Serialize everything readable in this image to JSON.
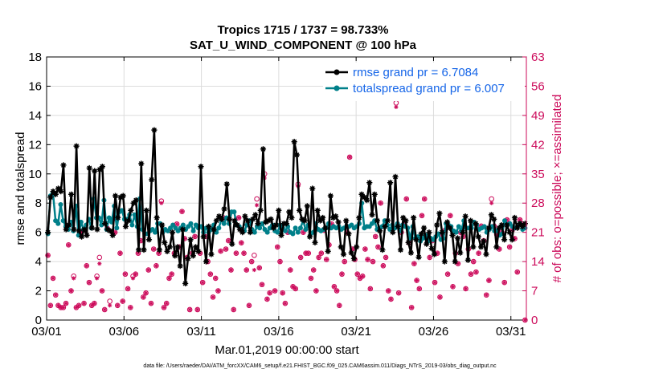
{
  "chart_data": {
    "type": "line",
    "title": "Tropics 1715 / 1737 = 98.733%",
    "subtitle": "SAT_U_WIND_COMPONENT @ 100 hPa",
    "xlabel": "Mar.01,2019 00:00:00 start",
    "ylabel": "rmse and totalspread",
    "y2label": "# of obs: o=possible; ×=assimilated",
    "footnote": "data file: /Users/raeder/DAI/ATM_forcXX/CAM6_setup/f.e21.FHIST_BGC.f09_025.CAM6assim.011/Diags_NTrS_2019-03/obs_diag_output.nc",
    "x_tick_labels": [
      "03/01",
      "03/06",
      "03/11",
      "03/16",
      "03/21",
      "03/26",
      "03/31"
    ],
    "x_tick_days": [
      1,
      6,
      11,
      16,
      21,
      26,
      31
    ],
    "xlim": [
      1,
      32
    ],
    "ylim": [
      0,
      18
    ],
    "y_ticks": [
      0,
      2,
      4,
      6,
      8,
      10,
      12,
      14,
      16,
      18
    ],
    "y_tick_labels": [
      "0",
      "2",
      "4",
      "6",
      "8",
      "10",
      "12",
      "14",
      "16",
      "18"
    ],
    "y2lim": [
      0,
      63
    ],
    "y2_ticks": [
      0,
      7,
      14,
      21,
      28,
      35,
      42,
      49,
      56,
      63
    ],
    "y2_tick_labels": [
      "0",
      "7",
      "14",
      "21",
      "28",
      "35",
      "42",
      "49",
      "56",
      "63"
    ],
    "grid": true,
    "legend_position": "top-right",
    "colors": {
      "rmse": "#000000",
      "spread": "#00808a",
      "obs": "#cc0a5a",
      "legend_text": "#1565e8",
      "grid": "#dcdcdc",
      "axis": "#000000"
    },
    "series": [
      {
        "name": "rmse grand pr = 6.7084",
        "key": "rmse",
        "values": [
          6.0,
          8.4,
          8.8,
          8.6,
          9.0,
          8.8,
          10.6,
          6.2,
          6.5,
          8.6,
          6.2,
          11.9,
          6.1,
          5.7,
          6.2,
          5.8,
          10.4,
          6.3,
          10.2,
          6.2,
          10.3,
          10.5,
          6.6,
          6.2,
          6.1,
          5.8,
          8.5,
          7.0,
          8.4,
          8.5,
          6.4,
          6.8,
          7.5,
          8.0,
          8.2,
          4.8,
          10.7,
          4.8,
          7.5,
          5.5,
          9.6,
          13.0,
          7.0,
          4.8,
          6.5,
          5.3,
          4.7,
          5.0,
          6.0,
          4.4,
          5.0,
          3.7,
          6.2,
          2.5,
          4.2,
          5.5,
          4.4,
          5.0,
          4.7,
          10.5,
          5.7,
          4.0,
          6.4,
          4.5,
          6.2,
          6.8,
          7.1,
          6.9,
          7.6,
          9.3,
          6.9,
          5.2,
          6.8,
          6.5,
          6.2,
          6.0,
          7.1,
          6.8,
          6.0,
          6.9,
          7.2,
          6.6,
          7.5,
          11.7,
          6.7,
          6.8,
          6.9,
          6.3,
          6.5,
          7.5,
          5.8,
          6.6,
          6.6,
          7.4,
          7.0,
          12.2,
          11.3,
          7.5,
          6.9,
          6.8,
          7.8,
          5.7,
          9.0,
          5.3,
          7.5,
          6.8,
          7.0,
          6.3,
          4.7,
          8.5,
          7.0,
          7.1,
          6.7,
          5.0,
          4.5,
          6.8,
          5.9,
          4.6,
          4.2,
          5.0,
          7.0,
          8.6,
          8.4,
          8.2,
          9.4,
          7.2,
          8.6,
          6.8,
          6.1,
          4.8,
          6.4,
          6.8,
          9.4,
          6.0,
          9.8,
          6.4,
          4.8,
          7.0,
          6.8,
          5.3,
          4.6,
          7.0,
          5.5,
          4.3,
          5.9,
          6.3,
          5.2,
          6.0,
          4.9,
          4.5,
          6.5,
          7.3,
          6.0,
          4.0,
          6.7,
          6.3,
          5.8,
          4.0,
          5.6,
          4.6,
          6.0,
          7.1,
          4.1,
          6.8,
          5.0,
          6.6,
          5.7,
          5.0,
          5.4,
          4.5,
          6.3,
          7.2,
          6.9,
          5.0,
          6.3,
          6.5,
          5.5,
          6.5,
          6.0,
          5.5,
          7.0,
          6.3,
          6.6,
          6.4,
          6.6
        ]
      },
      {
        "name": "totalspread grand pr = 6.007",
        "key": "spread",
        "values": [
          5.9,
          8.5,
          8.7,
          6.8,
          6.6,
          7.9,
          6.8,
          6.4,
          6.2,
          6.7,
          6.1,
          7.8,
          5.8,
          6.7,
          6.2,
          6.5,
          6.9,
          6.3,
          8.3,
          7.0,
          7.0,
          6.5,
          8.2,
          6.2,
          7.0,
          6.7,
          7.8,
          6.3,
          7.4,
          7.5,
          6.9,
          6.9,
          7.2,
          6.5,
          7.2,
          6.4,
          8.3,
          6.2,
          5.9,
          5.9,
          6.1,
          6.2,
          6.0,
          6.6,
          6.6,
          6.0,
          6.2,
          6.1,
          6.3,
          6.5,
          6.3,
          6.1,
          6.3,
          6.5,
          6.2,
          6.4,
          6.6,
          6.1,
          6.5,
          6.3,
          6.4,
          6.0,
          6.3,
          6.0,
          6.2,
          6.5,
          6.0,
          6.3,
          6.9,
          6.6,
          7.0,
          6.6,
          7.4,
          7.4,
          6.5,
          6.4,
          6.2,
          6.1,
          6.5,
          6.8,
          6.2,
          6.0,
          6.4,
          6.3,
          6.6,
          6.2,
          6.0,
          6.3,
          6.5,
          6.1,
          6.0,
          6.5,
          6.3,
          6.1,
          6.4,
          6.0,
          5.9,
          6.3,
          6.0,
          6.3,
          6.8,
          6.2,
          6.5,
          5.9,
          6.0,
          6.6,
          6.2,
          6.1,
          6.2,
          6.3,
          6.6,
          6.3,
          6.4,
          6.3,
          6.4,
          6.2,
          6.3,
          6.4,
          6.4,
          6.5,
          6.3,
          6.4,
          6.6,
          8.0,
          6.3,
          6.4,
          6.4,
          6.6,
          6.8,
          6.2,
          6.3,
          6.4,
          6.8,
          6.5,
          6.2,
          6.5,
          6.3,
          6.6,
          6.1,
          6.5,
          6.4,
          6.3,
          5.6,
          6.4,
          5.6,
          5.7,
          5.4,
          5.6,
          5.8,
          5.4,
          5.6,
          5.5,
          5.7,
          5.9,
          5.5,
          5.6,
          6.6,
          6.5,
          6.4,
          6.1,
          6.0,
          6.4,
          6.1,
          6.8,
          6.3,
          6.3,
          6.3,
          6.7,
          6.5,
          6.2,
          6.3,
          6.4,
          6.0,
          6.2,
          6.4,
          6.1,
          6.1,
          5.8,
          5.9,
          6.8,
          6.5,
          6.6,
          6.4,
          6.3,
          6.4,
          6.6,
          6.2,
          6.3
        ]
      }
    ],
    "obs_possible": [
      15.5,
      3.5,
      10.0,
      6.0,
      3.5,
      3.0,
      3.0,
      4.0,
      18.0,
      7.0,
      10.5,
      3.0,
      3.5,
      21.0,
      4.0,
      13.0,
      9.0,
      3.5,
      4.0,
      10.5,
      15.0,
      7.0,
      2.5,
      22.0,
      4.5,
      24.0,
      21.0,
      3.5,
      16.0,
      4.5,
      11.0,
      7.5,
      3.0,
      10.5,
      11.0,
      16.0,
      19.0,
      5.5,
      6.5,
      12.0,
      4.0,
      17.0,
      13.0,
      16.0,
      28.5,
      3.0,
      4.0,
      10.0,
      11.0,
      16.0,
      23.0,
      17.5,
      26.0,
      19.5,
      15.0,
      2.5,
      16.0,
      20.0,
      2.5,
      16.0,
      9.0,
      20.0,
      14.0,
      11.0,
      5.5,
      10.0,
      7.0,
      16.5,
      24.5,
      17.0,
      19.0,
      12.0,
      2.5,
      16.0,
      24.5,
      18.5,
      16.0,
      12.0,
      3.5,
      14.0,
      15.5,
      29.0,
      12.5,
      8.5,
      35.0,
      5.0,
      6.5,
      22.5,
      7.0,
      17.5,
      14.0,
      6.5,
      4.0,
      21.0,
      12.0,
      8.0,
      7.5,
      32.5,
      15.0,
      21.0,
      16.0,
      16.0,
      10.0,
      12.0,
      7.0,
      15.0,
      16.0,
      21.5,
      14.5,
      18.0,
      23.0,
      8.0,
      7.0,
      3.5,
      11.0,
      14.0,
      21.0,
      39.0,
      17.0,
      14.5,
      11.0,
      10.0,
      10.5,
      17.0,
      14.5,
      7.5,
      14.0,
      20.0,
      17.5,
      28.0,
      13.0,
      15.0,
      7.0,
      5.0,
      22.0,
      52.0,
      6.5,
      21.0,
      23.0,
      29.0,
      18.5,
      3.0,
      13.5,
      9.5,
      7.5,
      25.0,
      29.0,
      20.0,
      15.0,
      19.0,
      9.0,
      16.0,
      5.5,
      20.5,
      21.5,
      11.0,
      25.0,
      8.0,
      16.0,
      13.5,
      21.0,
      20.0,
      7.5,
      17.0,
      11.0,
      14.0,
      11.5,
      16.0,
      22.5,
      19.0,
      6.0,
      9.5,
      29.0,
      22.5,
      20.5,
      17.0,
      21.0,
      9.0,
      24.0,
      17.5,
      21.5,
      19.5,
      11.5,
      24.0,
      23.0,
      0.0
    ],
    "obs_assimilated": [
      15.5,
      3.5,
      10.0,
      6.0,
      3.5,
      3.0,
      3.0,
      4.0,
      18.0,
      7.0,
      10.0,
      3.0,
      3.5,
      21.0,
      4.0,
      13.0,
      9.0,
      3.5,
      4.0,
      10.0,
      13.5,
      7.0,
      2.5,
      22.0,
      3.5,
      24.0,
      21.0,
      3.5,
      16.0,
      4.5,
      11.0,
      7.5,
      3.0,
      10.0,
      11.0,
      16.0,
      19.0,
      5.5,
      6.5,
      12.0,
      4.0,
      17.0,
      13.0,
      16.0,
      28.0,
      3.0,
      4.0,
      10.0,
      11.0,
      16.0,
      23.0,
      17.5,
      26.0,
      19.5,
      15.0,
      2.5,
      16.0,
      20.0,
      2.5,
      16.0,
      9.0,
      20.0,
      14.0,
      11.0,
      5.5,
      10.0,
      7.0,
      16.5,
      24.5,
      17.0,
      19.0,
      12.0,
      2.5,
      16.0,
      24.5,
      18.5,
      16.0,
      12.0,
      3.5,
      14.0,
      12.0,
      27.5,
      12.5,
      8.5,
      34.0,
      5.0,
      6.5,
      22.5,
      7.0,
      17.5,
      14.0,
      6.5,
      4.0,
      21.0,
      12.0,
      8.0,
      7.5,
      32.0,
      15.0,
      21.0,
      16.0,
      16.0,
      10.0,
      12.0,
      7.0,
      15.0,
      16.0,
      21.5,
      14.5,
      18.0,
      23.0,
      8.0,
      7.0,
      3.5,
      11.0,
      14.0,
      21.0,
      39.0,
      17.0,
      14.5,
      11.0,
      10.0,
      10.5,
      17.0,
      14.5,
      7.5,
      14.0,
      20.0,
      17.5,
      28.0,
      13.0,
      15.0,
      7.0,
      5.0,
      22.0,
      51.0,
      6.5,
      21.0,
      23.0,
      29.0,
      18.5,
      3.0,
      13.5,
      9.5,
      7.5,
      25.0,
      29.0,
      20.0,
      15.0,
      19.0,
      9.0,
      16.0,
      5.5,
      20.5,
      21.5,
      11.0,
      25.0,
      8.0,
      16.0,
      13.5,
      21.0,
      20.0,
      7.5,
      17.0,
      11.0,
      14.0,
      11.5,
      16.0,
      22.5,
      19.0,
      6.0,
      9.5,
      28.0,
      22.5,
      20.5,
      17.0,
      21.0,
      9.0,
      24.0,
      17.5,
      21.5,
      19.5,
      11.5,
      24.0,
      23.0,
      0.0
    ]
  }
}
